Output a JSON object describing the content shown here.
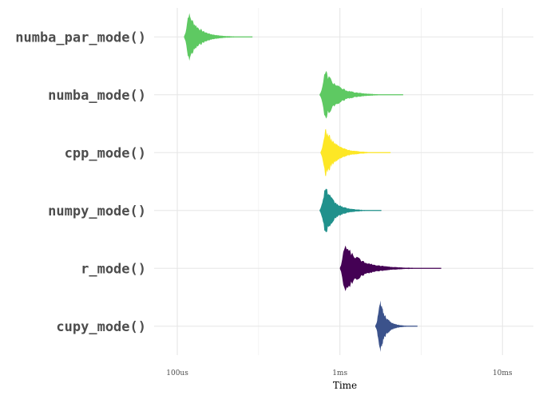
{
  "chart_data": {
    "type": "violin",
    "xlabel": "Time",
    "ylabel": "",
    "x_scale": "log10",
    "xlim": [
      7.2e-05,
      0.0155
    ],
    "x_ticks": [
      {
        "value": 0.0001,
        "label": "100us"
      },
      {
        "value": 0.001,
        "label": "1ms"
      },
      {
        "value": 0.01,
        "label": "10ms"
      }
    ],
    "categories": [
      "numba_par_mode()",
      "numba_mode()",
      "cpp_mode()",
      "numpy_mode()",
      "r_mode()",
      "cupy_mode()"
    ],
    "series": [
      {
        "category": "numba_par_mode()",
        "color": "#5ec962",
        "median": 0.000118,
        "min": 0.00011,
        "max": 0.00029
      },
      {
        "category": "numba_mode()",
        "color": "#5ec962",
        "median": 0.00082,
        "min": 0.00075,
        "max": 0.00245
      },
      {
        "category": "cpp_mode()",
        "color": "#fde725",
        "median": 0.00082,
        "min": 0.00076,
        "max": 0.00205
      },
      {
        "category": "numpy_mode()",
        "color": "#21918c",
        "median": 0.00082,
        "min": 0.00075,
        "max": 0.0018
      },
      {
        "category": "r_mode()",
        "color": "#440154",
        "median": 0.00108,
        "min": 0.001,
        "max": 0.0042
      },
      {
        "category": "cupy_mode()",
        "color": "#3b528b",
        "median": 0.00178,
        "min": 0.00165,
        "max": 0.003
      }
    ]
  }
}
